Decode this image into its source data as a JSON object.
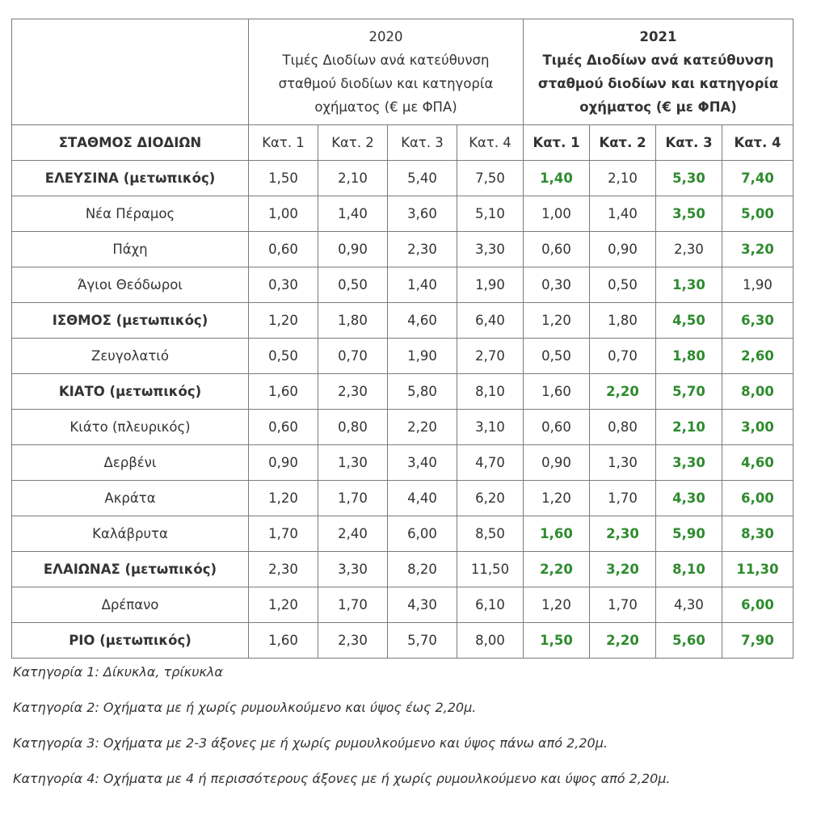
{
  "header": {
    "y2020": {
      "year": "2020",
      "line1": "Τιμές Διοδίων ανά κατεύθυνση",
      "line2": "σταθμού διοδίων και κατηγορία",
      "line3": "οχήματος (€ με ΦΠΑ)"
    },
    "y2021": {
      "year": "2021",
      "line1": "Τιμές Διοδίων ανά κατεύθυνση",
      "line2": "σταθμού διοδίων και κατηγορία",
      "line3": "οχήματος (€ με ΦΠΑ)"
    }
  },
  "subheader": {
    "station": "ΣΤΑΘΜΟΣ ΔΙΟΔΙΩΝ",
    "cats2020": [
      "Κατ. 1",
      "Κατ. 2",
      "Κατ. 3",
      "Κατ. 4"
    ],
    "cats2021": [
      "Κατ. 1",
      "Κατ. 2",
      "Κατ. 3",
      "Κατ. 4"
    ]
  },
  "rows": [
    {
      "station": "ΕΛΕΥΣΙΝΑ (μετωπικός)",
      "frontal": true,
      "p2020": [
        "1,50",
        "2,10",
        "5,40",
        "7,50"
      ],
      "p2021": [
        "1,40",
        "2,10",
        "5,30",
        "7,40"
      ],
      "decreased": [
        true,
        false,
        true,
        true
      ]
    },
    {
      "station": "Νέα Πέραμος",
      "frontal": false,
      "p2020": [
        "1,00",
        "1,40",
        "3,60",
        "5,10"
      ],
      "p2021": [
        "1,00",
        "1,40",
        "3,50",
        "5,00"
      ],
      "decreased": [
        false,
        false,
        true,
        true
      ]
    },
    {
      "station": "Πάχη",
      "frontal": false,
      "p2020": [
        "0,60",
        "0,90",
        "2,30",
        "3,30"
      ],
      "p2021": [
        "0,60",
        "0,90",
        "2,30",
        "3,20"
      ],
      "decreased": [
        false,
        false,
        false,
        true
      ]
    },
    {
      "station": "Άγιοι Θεόδωροι",
      "frontal": false,
      "p2020": [
        "0,30",
        "0,50",
        "1,40",
        "1,90"
      ],
      "p2021": [
        "0,30",
        "0,50",
        "1,30",
        "1,90"
      ],
      "decreased": [
        false,
        false,
        true,
        false
      ]
    },
    {
      "station": "ΙΣΘΜΟΣ (μετωπικός)",
      "frontal": true,
      "p2020": [
        "1,20",
        "1,80",
        "4,60",
        "6,40"
      ],
      "p2021": [
        "1,20",
        "1,80",
        "4,50",
        "6,30"
      ],
      "decreased": [
        false,
        false,
        true,
        true
      ]
    },
    {
      "station": "Ζευγολατιό",
      "frontal": false,
      "p2020": [
        "0,50",
        "0,70",
        "1,90",
        "2,70"
      ],
      "p2021": [
        "0,50",
        "0,70",
        "1,80",
        "2,60"
      ],
      "decreased": [
        false,
        false,
        true,
        true
      ]
    },
    {
      "station": "ΚΙΑΤΟ (μετωπικός)",
      "frontal": true,
      "p2020": [
        "1,60",
        "2,30",
        "5,80",
        "8,10"
      ],
      "p2021": [
        "1,60",
        "2,20",
        "5,70",
        "8,00"
      ],
      "decreased": [
        false,
        true,
        true,
        true
      ]
    },
    {
      "station": "Κιάτο (πλευρικός)",
      "frontal": false,
      "p2020": [
        "0,60",
        "0,80",
        "2,20",
        "3,10"
      ],
      "p2021": [
        "0,60",
        "0,80",
        "2,10",
        "3,00"
      ],
      "decreased": [
        false,
        false,
        true,
        true
      ]
    },
    {
      "station": "Δερβένι",
      "frontal": false,
      "p2020": [
        "0,90",
        "1,30",
        "3,40",
        "4,70"
      ],
      "p2021": [
        "0,90",
        "1,30",
        "3,30",
        "4,60"
      ],
      "decreased": [
        false,
        false,
        true,
        true
      ]
    },
    {
      "station": "Ακράτα",
      "frontal": false,
      "p2020": [
        "1,20",
        "1,70",
        "4,40",
        "6,20"
      ],
      "p2021": [
        "1,20",
        "1,70",
        "4,30",
        "6,00"
      ],
      "decreased": [
        false,
        false,
        true,
        true
      ]
    },
    {
      "station": "Καλάβρυτα",
      "frontal": false,
      "p2020": [
        "1,70",
        "2,40",
        "6,00",
        "8,50"
      ],
      "p2021": [
        "1,60",
        "2,30",
        "5,90",
        "8,30"
      ],
      "decreased": [
        true,
        true,
        true,
        true
      ]
    },
    {
      "station": "ΕΛΑΙΩΝΑΣ (μετωπικός)",
      "frontal": true,
      "p2020": [
        "2,30",
        "3,30",
        "8,20",
        "11,50"
      ],
      "p2021": [
        "2,20",
        "3,20",
        "8,10",
        "11,30"
      ],
      "decreased": [
        true,
        true,
        true,
        true
      ]
    },
    {
      "station": "Δρέπανο",
      "frontal": false,
      "p2020": [
        "1,20",
        "1,70",
        "4,30",
        "6,10"
      ],
      "p2021": [
        "1,20",
        "1,70",
        "4,30",
        "6,00"
      ],
      "decreased": [
        false,
        false,
        false,
        true
      ]
    },
    {
      "station": "ΡΙΟ (μετωπικός)",
      "frontal": true,
      "p2020": [
        "1,60",
        "2,30",
        "5,70",
        "8,00"
      ],
      "p2021": [
        "1,50",
        "2,20",
        "5,60",
        "7,90"
      ],
      "decreased": [
        true,
        true,
        true,
        true
      ]
    }
  ],
  "notes": [
    "Κατηγορία 1: Δίκυκλα, τρίκυκλα",
    "Κατηγορία 2: Οχήματα με ή χωρίς ρυμουλκούμενο και ύψος έως 2,20μ.",
    "Κατηγορία 3: Οχήματα με 2-3 άξονες με ή χωρίς ρυμουλκούμενο και ύψος πάνω από 2,20μ.",
    "Κατηγορία 4: Οχήματα με 4 ή περισσότερους άξονες με ή χωρίς ρυμουλκούμενο και ύψος από 2,20μ."
  ],
  "colors": {
    "decrease_highlight": "#2e8b2e",
    "border": "#7a7a7a",
    "text": "#333333"
  }
}
